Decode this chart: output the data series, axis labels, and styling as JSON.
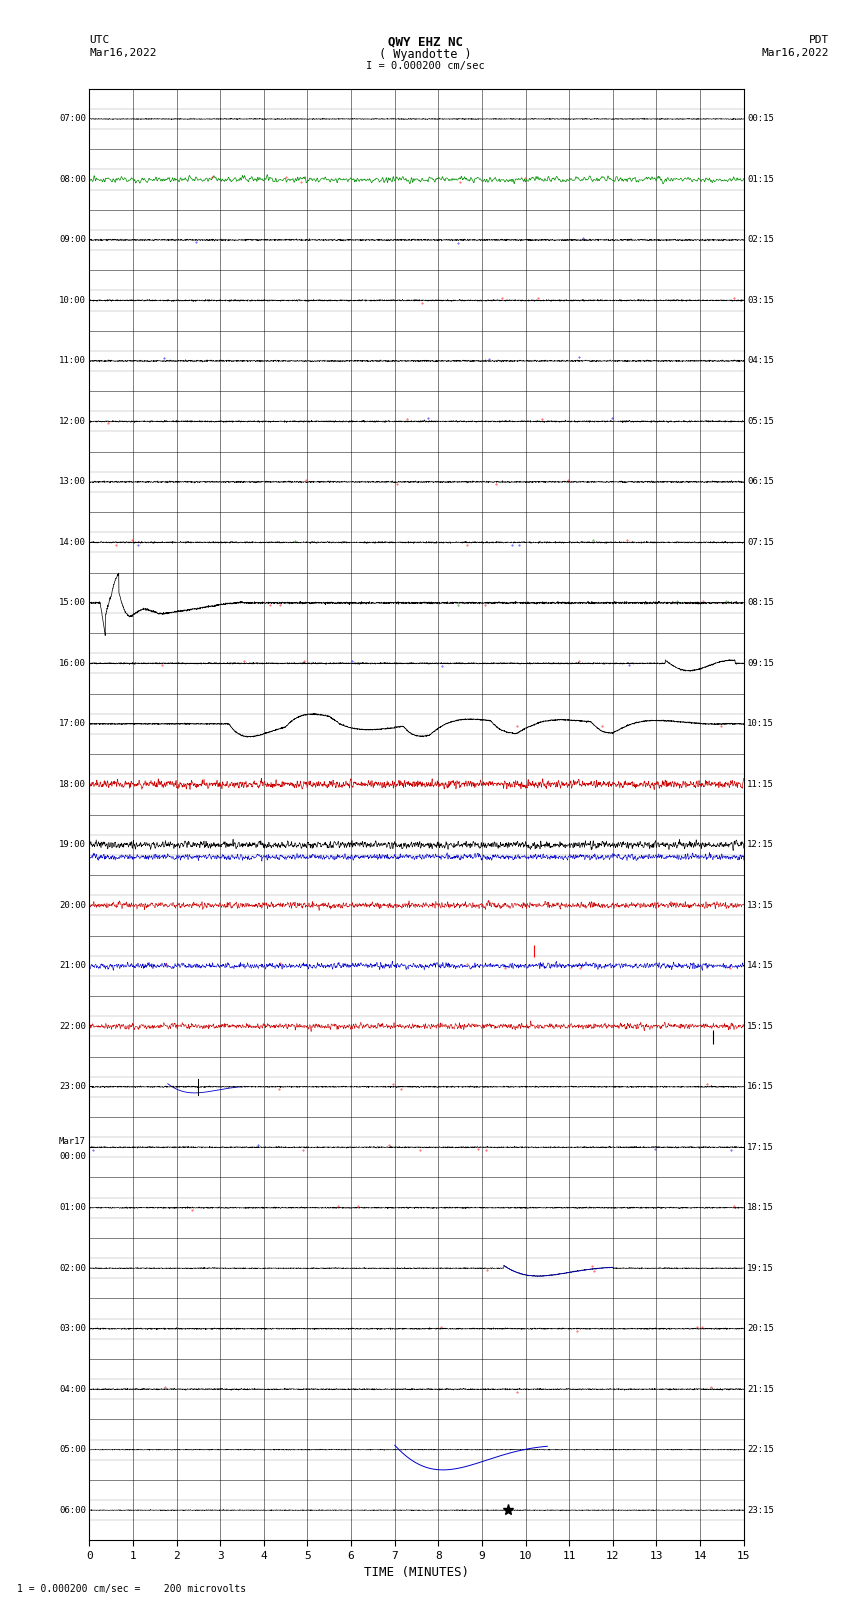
{
  "title_line1": "QWY EHZ NC",
  "title_line2": "( Wyandotte )",
  "title_scale": "I = 0.000200 cm/sec",
  "label_left_top": "UTC",
  "label_left_date": "Mar16,2022",
  "label_right_top": "PDT",
  "label_right_date": "Mar16,2022",
  "xlabel": "TIME (MINUTES)",
  "footer": "1 = 0.000200 cm/sec =    200 microvolts",
  "num_traces": 24,
  "x_min": 0,
  "x_max": 15,
  "utc_labels": [
    "07:00",
    "08:00",
    "09:00",
    "10:00",
    "11:00",
    "12:00",
    "13:00",
    "14:00",
    "15:00",
    "16:00",
    "17:00",
    "18:00",
    "19:00",
    "20:00",
    "21:00",
    "22:00",
    "23:00",
    "Mar17\n00:00",
    "01:00",
    "02:00",
    "03:00",
    "04:00",
    "05:00",
    "06:00"
  ],
  "pdt_labels": [
    "00:15",
    "01:15",
    "02:15",
    "03:15",
    "04:15",
    "05:15",
    "06:15",
    "07:15",
    "08:15",
    "09:15",
    "10:15",
    "11:15",
    "12:15",
    "13:15",
    "14:15",
    "15:15",
    "16:15",
    "17:15",
    "18:15",
    "19:15",
    "20:15",
    "21:15",
    "22:15",
    "23:15"
  ]
}
